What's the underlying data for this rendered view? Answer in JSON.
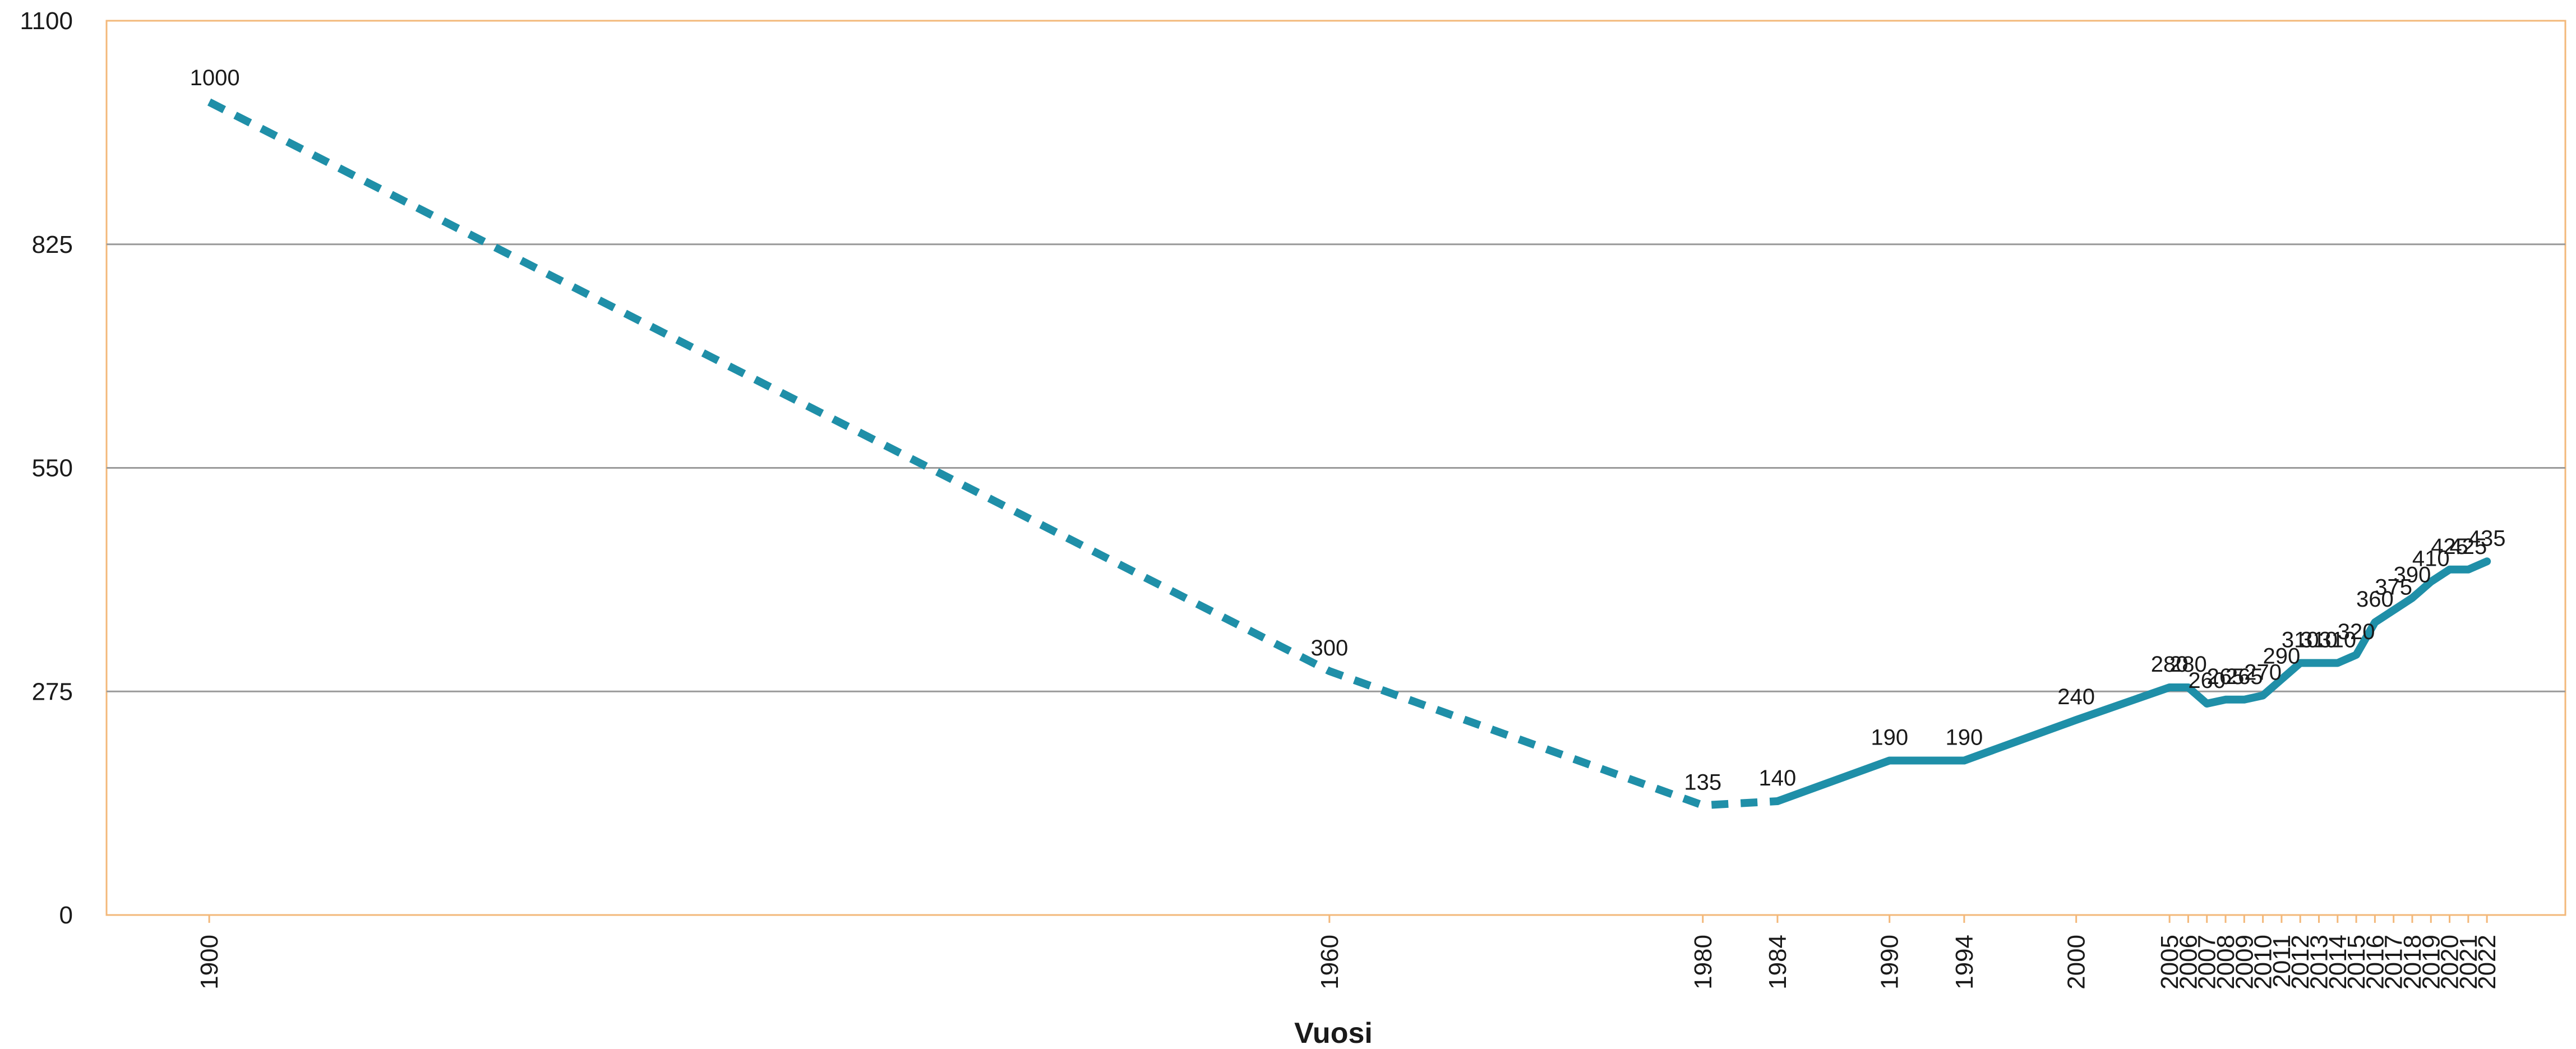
{
  "chart_data": {
    "type": "line",
    "xlabel": "Vuosi",
    "ylabel": "",
    "ylim": [
      0,
      1100
    ],
    "yticks": [
      0,
      275,
      550,
      825,
      1100
    ],
    "grid": "horizontal",
    "line_color": "#1f8fa8",
    "frame_color": "#f3b87a",
    "grid_color": "#9a9a9a",
    "x": [
      "1900",
      "1960",
      "1980",
      "1984",
      "1990",
      "1994",
      "2000",
      "2005",
      "2006",
      "2007",
      "2008",
      "2009",
      "2010",
      "2011",
      "2012",
      "2013",
      "2014",
      "2015",
      "2016",
      "2017",
      "2018",
      "2019",
      "2020",
      "2021",
      "2022"
    ],
    "series": [
      {
        "values": [
          1000,
          300,
          135,
          140,
          190,
          190,
          240,
          280,
          280,
          260,
          265,
          265,
          270,
          290,
          310,
          310,
          310,
          320,
          360,
          375,
          390,
          410,
          425,
          425,
          435
        ],
        "dashed_until_index": 3
      }
    ]
  }
}
